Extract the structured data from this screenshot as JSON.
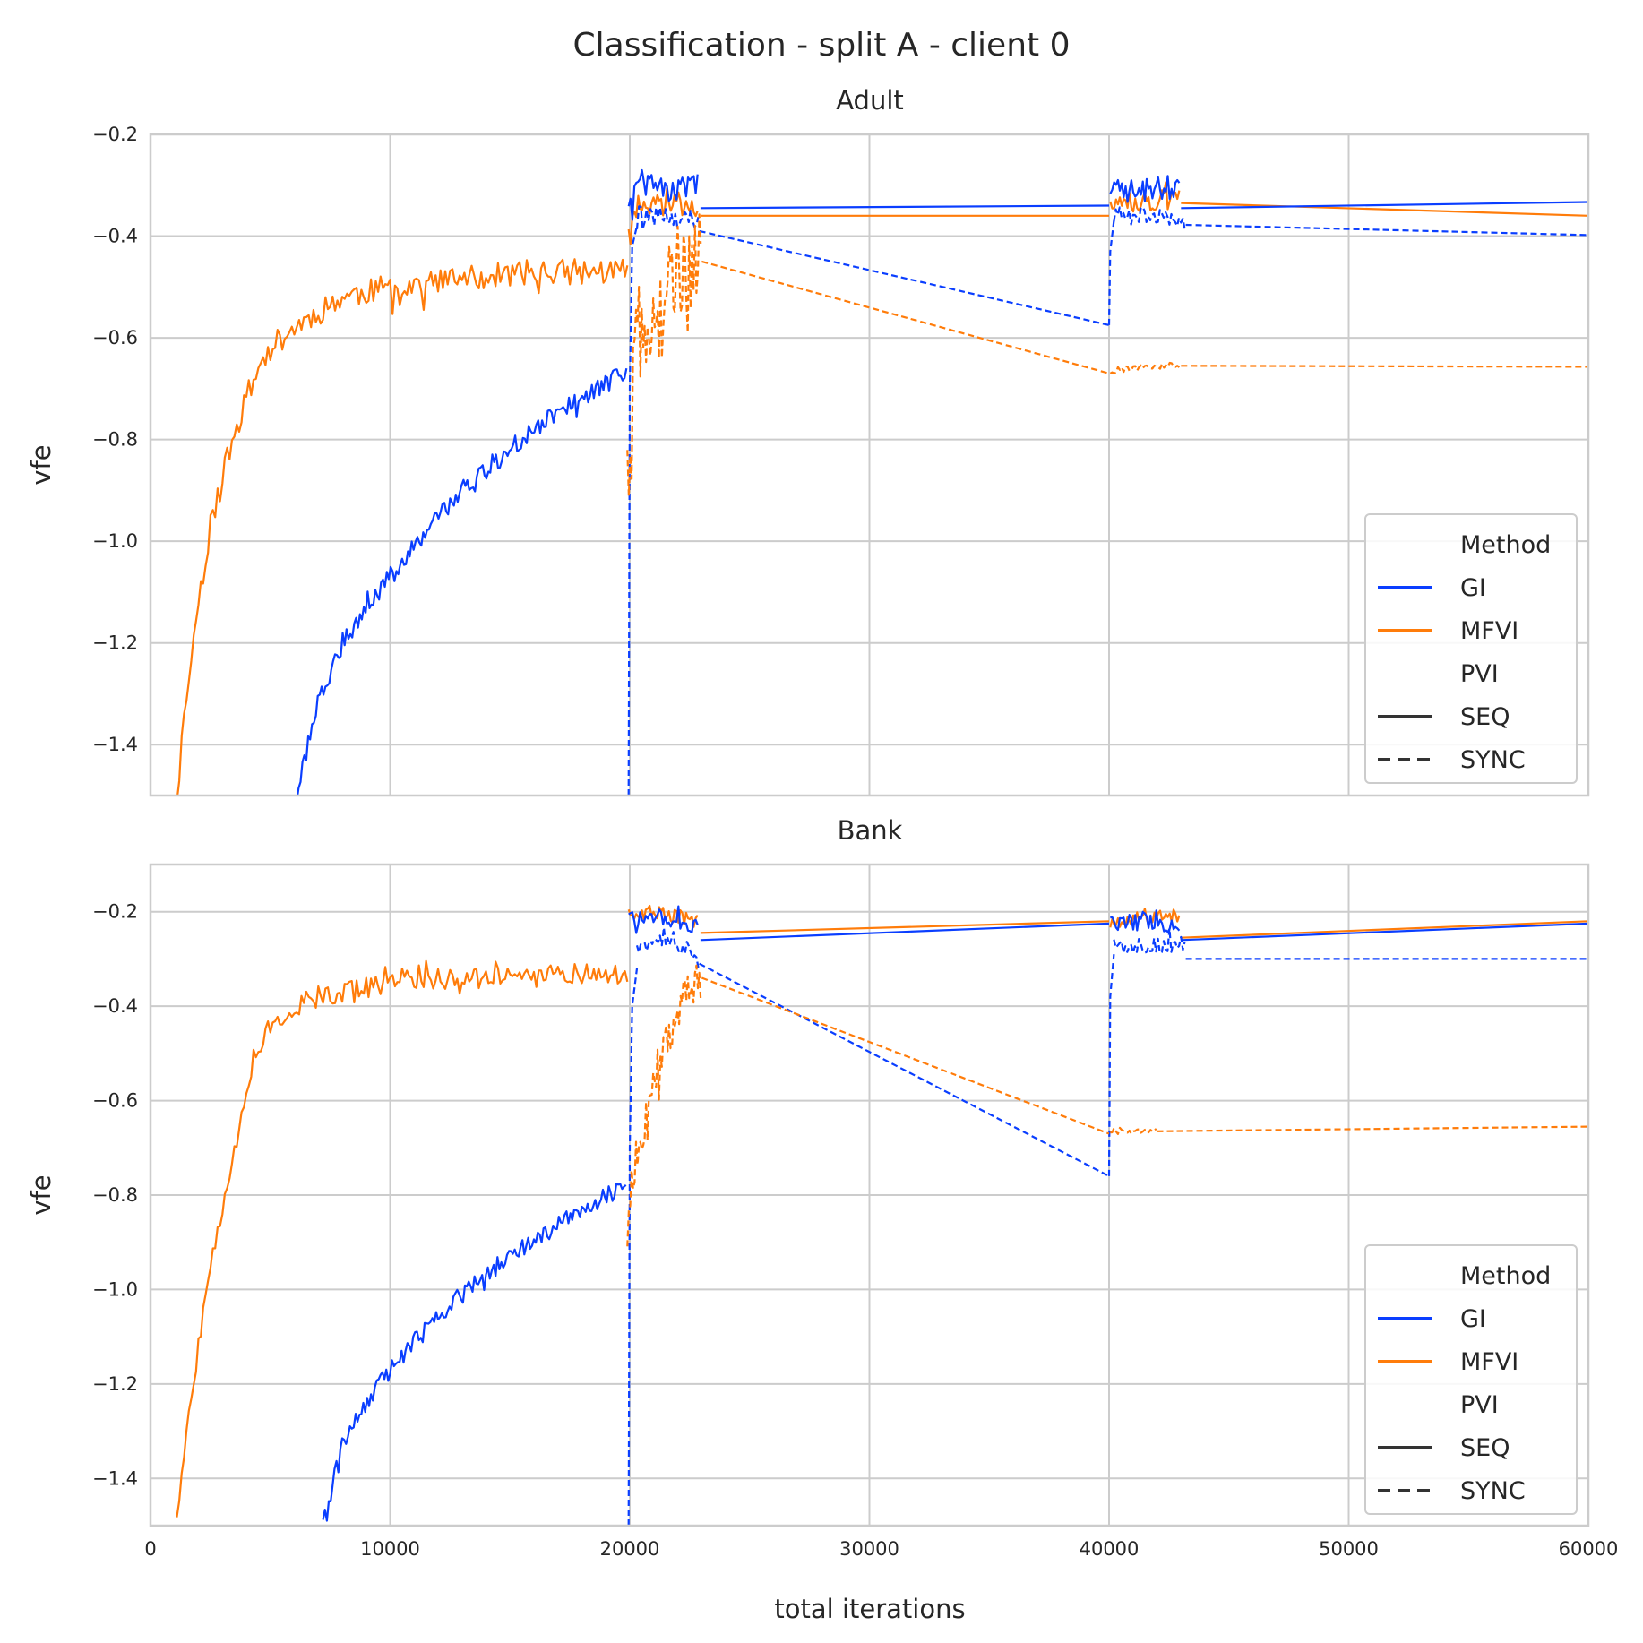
{
  "figure": {
    "title": "Classification - split A - client 0",
    "colors": {
      "GI": "#0a3eff",
      "MFVI": "#ff7c0a",
      "PVI": "#333333"
    }
  },
  "chart_data": [
    {
      "type": "line",
      "title": "Adult",
      "xlabel": "",
      "ylabel": "vfe",
      "xlim": [
        0,
        60000
      ],
      "ylim": [
        -1.5,
        -0.2
      ],
      "yticks": [
        -1.4,
        -1.2,
        -1.0,
        -0.8,
        -0.6,
        -0.4,
        -0.2
      ],
      "ytick_labels": [
        "−1.4",
        "−1.2",
        "−1.0",
        "−0.8",
        "−0.6",
        "−0.4",
        "−0.2"
      ],
      "xticks": [
        0,
        10000,
        20000,
        30000,
        40000,
        50000,
        60000
      ],
      "xtick_labels": [],
      "grid": true,
      "legend": {
        "placement": "lower right",
        "title1": "Method",
        "entries1": [
          {
            "label": "GI",
            "color": "#0a3eff",
            "dash": "solid"
          },
          {
            "label": "MFVI",
            "color": "#ff7c0a",
            "dash": "solid"
          }
        ],
        "title2": "PVI",
        "entries2": [
          {
            "label": "SEQ",
            "color": "#333333",
            "dash": "solid"
          },
          {
            "label": "SYNC",
            "color": "#333333",
            "dash": "dashed"
          }
        ]
      },
      "series": [
        {
          "name": "MFVI",
          "pvi": "SEQ",
          "color": "#ff7c0a",
          "dash": "solid",
          "segments": [
            {
              "kind": "noisy",
              "x": [
                1100,
                1500,
                2000,
                2500,
                3000,
                3500,
                4000,
                4500,
                5000,
                6000,
                7000,
                8000,
                10000,
                12000,
                14000,
                16000,
                18000,
                19900
              ],
              "y": [
                -1.5,
                -1.3,
                -1.12,
                -0.97,
                -0.87,
                -0.79,
                -0.72,
                -0.66,
                -0.62,
                -0.58,
                -0.55,
                -0.52,
                -0.5,
                -0.49,
                -0.48,
                -0.47,
                -0.47,
                -0.47
              ],
              "noise": 0.025,
              "step": 100,
              "seed": 11
            },
            {
              "kind": "noisy",
              "x": [
                19950,
                20500,
                21000,
                22000,
                22900
              ],
              "y": [
                -0.38,
                -0.33,
                -0.34,
                -0.33,
                -0.34
              ],
              "noise": 0.025,
              "step": 80,
              "seed": 12
            },
            {
              "kind": "plain",
              "x": [
                22950,
                40000
              ],
              "y": [
                -0.36,
                -0.36
              ]
            },
            {
              "kind": "noisy",
              "x": [
                40050,
                41000,
                42000,
                43000
              ],
              "y": [
                -0.33,
                -0.33,
                -0.33,
                -0.33
              ],
              "noise": 0.022,
              "step": 80,
              "seed": 13
            },
            {
              "kind": "plain",
              "x": [
                43000,
                60000
              ],
              "y": [
                -0.335,
                -0.36
              ]
            }
          ]
        },
        {
          "name": "GI",
          "pvi": "SEQ",
          "color": "#0a3eff",
          "dash": "solid",
          "segments": [
            {
              "kind": "noisy",
              "x": [
                6100,
                7000,
                8000,
                9000,
                10000,
                11000,
                12000,
                13000,
                14000,
                15000,
                16000,
                17000,
                18000,
                19000,
                19900
              ],
              "y": [
                -1.5,
                -1.31,
                -1.2,
                -1.13,
                -1.07,
                -1.01,
                -0.95,
                -0.9,
                -0.86,
                -0.82,
                -0.78,
                -0.75,
                -0.72,
                -0.69,
                -0.67
              ],
              "noise": 0.02,
              "step": 80,
              "seed": 21
            },
            {
              "kind": "noisy",
              "x": [
                19950,
                20500,
                21500,
                22900
              ],
              "y": [
                -0.33,
                -0.3,
                -0.31,
                -0.3
              ],
              "noise": 0.025,
              "step": 80,
              "seed": 22
            },
            {
              "kind": "plain",
              "x": [
                22950,
                40000
              ],
              "y": [
                -0.345,
                -0.34
              ]
            },
            {
              "kind": "noisy",
              "x": [
                40050,
                41500,
                43000
              ],
              "y": [
                -0.31,
                -0.31,
                -0.3
              ],
              "noise": 0.025,
              "step": 80,
              "seed": 23
            },
            {
              "kind": "plain",
              "x": [
                43000,
                60000
              ],
              "y": [
                -0.345,
                -0.333
              ]
            }
          ]
        },
        {
          "name": "GI",
          "pvi": "SYNC",
          "color": "#0a3eff",
          "dash": "dashed",
          "segments": [
            {
              "kind": "plain",
              "x": [
                19950,
                20000,
                20100,
                20300
              ],
              "y": [
                -1.5,
                -0.7,
                -0.42,
                -0.38
              ]
            },
            {
              "kind": "noisy",
              "x": [
                20300,
                21500,
                22900
              ],
              "y": [
                -0.37,
                -0.36,
                -0.37
              ],
              "noise": 0.02,
              "step": 80,
              "seed": 31
            },
            {
              "kind": "plain",
              "x": [
                22900,
                40000
              ],
              "y": [
                -0.39,
                -0.575
              ]
            },
            {
              "kind": "plain",
              "x": [
                40000,
                40050,
                40200
              ],
              "y": [
                -0.575,
                -0.43,
                -0.37
              ]
            },
            {
              "kind": "noisy",
              "x": [
                40200,
                42000,
                43200
              ],
              "y": [
                -0.36,
                -0.36,
                -0.37
              ],
              "noise": 0.018,
              "step": 80,
              "seed": 32
            },
            {
              "kind": "plain",
              "x": [
                43200,
                60000
              ],
              "y": [
                -0.378,
                -0.398
              ]
            }
          ]
        },
        {
          "name": "MFVI",
          "pvi": "SYNC",
          "color": "#ff7c0a",
          "dash": "dashed",
          "segments": [
            {
              "kind": "noisy",
              "x": [
                19900,
                20000,
                20300,
                20600,
                21000,
                21500,
                22000,
                22500,
                23000
              ],
              "y": [
                -0.92,
                -0.8,
                -0.6,
                -0.55,
                -0.6,
                -0.52,
                -0.48,
                -0.46,
                -0.45
              ],
              "noise": 0.1,
              "step": 60,
              "seed": 41
            },
            {
              "kind": "plain",
              "x": [
                23000,
                40000
              ],
              "y": [
                -0.45,
                -0.67
              ]
            },
            {
              "kind": "noisy",
              "x": [
                40050,
                41000,
                42000,
                43000
              ],
              "y": [
                -0.665,
                -0.66,
                -0.655,
                -0.655
              ],
              "noise": 0.006,
              "step": 80,
              "seed": 42
            },
            {
              "kind": "plain",
              "x": [
                43000,
                60000
              ],
              "y": [
                -0.655,
                -0.657
              ]
            }
          ]
        }
      ]
    },
    {
      "type": "line",
      "title": "Bank",
      "xlabel": "total iterations",
      "ylabel": "vfe",
      "xlim": [
        0,
        60000
      ],
      "ylim": [
        -1.5,
        -0.1
      ],
      "yticks": [
        -1.4,
        -1.2,
        -1.0,
        -0.8,
        -0.6,
        -0.4,
        -0.2
      ],
      "ytick_labels": [
        "−1.4",
        "−1.2",
        "−1.0",
        "−0.8",
        "−0.6",
        "−0.4",
        "−0.2"
      ],
      "xticks": [
        0,
        10000,
        20000,
        30000,
        40000,
        50000,
        60000
      ],
      "xtick_labels": [
        "0",
        "10000",
        "20000",
        "30000",
        "40000",
        "50000",
        "60000"
      ],
      "grid": true,
      "legend": {
        "placement": "lower right",
        "title1": "Method",
        "entries1": [
          {
            "label": "GI",
            "color": "#0a3eff",
            "dash": "solid"
          },
          {
            "label": "MFVI",
            "color": "#ff7c0a",
            "dash": "solid"
          }
        ],
        "title2": "PVI",
        "entries2": [
          {
            "label": "SEQ",
            "color": "#333333",
            "dash": "solid"
          },
          {
            "label": "SYNC",
            "color": "#333333",
            "dash": "dashed"
          }
        ]
      },
      "series": [
        {
          "name": "MFVI",
          "pvi": "SEQ",
          "color": "#ff7c0a",
          "dash": "solid",
          "segments": [
            {
              "kind": "noisy",
              "x": [
                1100,
                1500,
                2000,
                2500,
                3000,
                3500,
                4000,
                4500,
                5000,
                6000,
                7000,
                8000,
                10000,
                12000,
                14000,
                16000,
                18000,
                19900
              ],
              "y": [
                -1.5,
                -1.3,
                -1.12,
                -0.96,
                -0.82,
                -0.7,
                -0.58,
                -0.49,
                -0.44,
                -0.4,
                -0.38,
                -0.37,
                -0.35,
                -0.34,
                -0.34,
                -0.33,
                -0.33,
                -0.33
              ],
              "noise": 0.022,
              "step": 100,
              "seed": 51
            },
            {
              "kind": "noisy",
              "x": [
                19950,
                21000,
                22900
              ],
              "y": [
                -0.21,
                -0.2,
                -0.22
              ],
              "noise": 0.015,
              "step": 80,
              "seed": 52
            },
            {
              "kind": "plain",
              "x": [
                22950,
                40000
              ],
              "y": [
                -0.245,
                -0.22
              ]
            },
            {
              "kind": "noisy",
              "x": [
                40050,
                41500,
                43000
              ],
              "y": [
                -0.22,
                -0.21,
                -0.21
              ],
              "noise": 0.016,
              "step": 80,
              "seed": 53
            },
            {
              "kind": "plain",
              "x": [
                43000,
                60000
              ],
              "y": [
                -0.255,
                -0.22
              ]
            }
          ]
        },
        {
          "name": "GI",
          "pvi": "SEQ",
          "color": "#0a3eff",
          "dash": "solid",
          "segments": [
            {
              "kind": "noisy",
              "x": [
                7200,
                8000,
                9000,
                10000,
                11000,
                12000,
                13000,
                14000,
                15000,
                16000,
                17000,
                18000,
                19000,
                19900
              ],
              "y": [
                -1.5,
                -1.33,
                -1.24,
                -1.17,
                -1.11,
                -1.06,
                -1.01,
                -0.97,
                -0.93,
                -0.9,
                -0.86,
                -0.83,
                -0.8,
                -0.77
              ],
              "noise": 0.02,
              "step": 80,
              "seed": 61
            },
            {
              "kind": "noisy",
              "x": [
                19950,
                21000,
                22900
              ],
              "y": [
                -0.22,
                -0.21,
                -0.23
              ],
              "noise": 0.018,
              "step": 80,
              "seed": 62
            },
            {
              "kind": "plain",
              "x": [
                22950,
                40000
              ],
              "y": [
                -0.26,
                -0.225
              ]
            },
            {
              "kind": "noisy",
              "x": [
                40050,
                41500,
                43000
              ],
              "y": [
                -0.23,
                -0.22,
                -0.23
              ],
              "noise": 0.018,
              "step": 80,
              "seed": 63
            },
            {
              "kind": "plain",
              "x": [
                43000,
                60000
              ],
              "y": [
                -0.26,
                -0.225
              ]
            }
          ]
        },
        {
          "name": "GI",
          "pvi": "SYNC",
          "color": "#0a3eff",
          "dash": "dashed",
          "segments": [
            {
              "kind": "plain",
              "x": [
                19950,
                20000,
                20100,
                20300
              ],
              "y": [
                -1.5,
                -0.7,
                -0.4,
                -0.32
              ]
            },
            {
              "kind": "noisy",
              "x": [
                20300,
                21500,
                22900
              ],
              "y": [
                -0.28,
                -0.25,
                -0.3
              ],
              "noise": 0.02,
              "step": 80,
              "seed": 71
            },
            {
              "kind": "plain",
              "x": [
                22900,
                40000
              ],
              "y": [
                -0.31,
                -0.76
              ]
            },
            {
              "kind": "plain",
              "x": [
                40000,
                40050,
                40200
              ],
              "y": [
                -0.76,
                -0.38,
                -0.29
              ]
            },
            {
              "kind": "noisy",
              "x": [
                40200,
                42000,
                43200
              ],
              "y": [
                -0.27,
                -0.27,
                -0.27
              ],
              "noise": 0.018,
              "step": 80,
              "seed": 72
            },
            {
              "kind": "plain",
              "x": [
                43200,
                60000
              ],
              "y": [
                -0.3,
                -0.3
              ]
            }
          ]
        },
        {
          "name": "MFVI",
          "pvi": "SYNC",
          "color": "#ff7c0a",
          "dash": "dashed",
          "segments": [
            {
              "kind": "noisy",
              "x": [
                19900,
                20000,
                20300,
                20700,
                21200,
                21800,
                22500,
                23000
              ],
              "y": [
                -0.92,
                -0.8,
                -0.72,
                -0.62,
                -0.52,
                -0.44,
                -0.36,
                -0.34
              ],
              "noise": 0.045,
              "step": 60,
              "seed": 81
            },
            {
              "kind": "plain",
              "x": [
                23000,
                40000
              ],
              "y": [
                -0.34,
                -0.67
              ]
            },
            {
              "kind": "noisy",
              "x": [
                40050,
                41000,
                42000
              ],
              "y": [
                -0.67,
                -0.665,
                -0.66
              ],
              "noise": 0.006,
              "step": 80,
              "seed": 82
            },
            {
              "kind": "plain",
              "x": [
                42000,
                60000
              ],
              "y": [
                -0.665,
                -0.655
              ]
            }
          ]
        }
      ]
    }
  ]
}
